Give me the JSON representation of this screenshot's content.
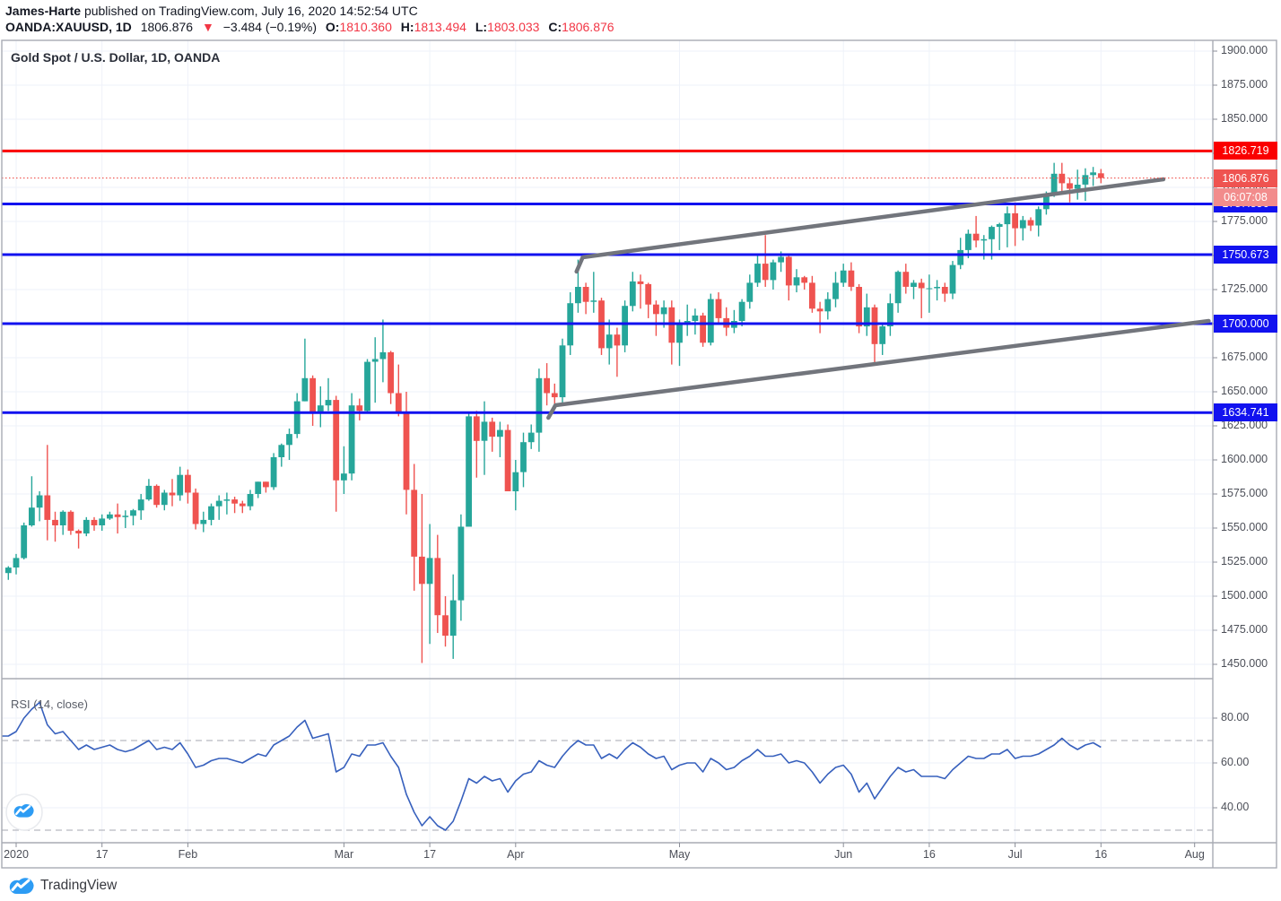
{
  "header": {
    "author": "James-Harte",
    "publish_text": " published on TradingView.com, July 16, 2020 14:52:54 UTC",
    "symbol_interval": "OANDA:XAUUSD, 1D",
    "last_price": "1806.876",
    "down_arrow": "▼",
    "change": "−3.484 (−0.19%)",
    "open_label": "O:",
    "open_value": "1810.360",
    "high_label": "H:",
    "high_value": "1813.494",
    "low_label": "L:",
    "low_value": "1803.033",
    "close_label": "C:",
    "close_value": "1806.876"
  },
  "chart": {
    "title": "Gold Spot / U.S. Dollar, 1D, OANDA",
    "rsi_label": "RSI (14, close)"
  },
  "price_axis": {
    "ticks": [
      1900,
      1875,
      1850,
      1825,
      1800,
      1775,
      1750,
      1725,
      1700,
      1675,
      1650,
      1625,
      1600,
      1575,
      1550,
      1525,
      1500,
      1475,
      1450
    ],
    "decimals": 3
  },
  "rsi_axis": {
    "ticks": [
      80,
      60,
      40
    ],
    "decimals": 2
  },
  "time_axis": {
    "ticks": [
      {
        "label": "2020",
        "i": 1
      },
      {
        "label": "17",
        "i": 12
      },
      {
        "label": "Feb",
        "i": 23
      },
      {
        "label": "Mar",
        "i": 43
      },
      {
        "label": "17",
        "i": 54
      },
      {
        "label": "Apr",
        "i": 65
      },
      {
        "label": "May",
        "i": 86
      },
      {
        "label": "Jun",
        "i": 107
      },
      {
        "label": "16",
        "i": 118
      },
      {
        "label": "Jul",
        "i": 129
      },
      {
        "label": "16",
        "i": 140
      },
      {
        "label": "Aug",
        "i": 152
      }
    ]
  },
  "footer": {
    "brand": "TradingView"
  },
  "colors": {
    "up": "#26a69a",
    "down": "#ef5350",
    "level_red": "#fa0000",
    "level_blue": "#1212ef",
    "last_badge": "#ef5350",
    "countdown_badge": "#f28c8c",
    "channel": "#72757c",
    "rsi_line": "#3760bd",
    "grid": "#eef2f9",
    "dashed_band": "#b7b9c1",
    "border": "#a8abb3",
    "tick": "#8b8e98",
    "logo_blue": "#2d9cf4",
    "last_line": "#f0524d"
  },
  "chart_data": {
    "type": "candlestick+rsi",
    "title": "Gold Spot / U.S. Dollar, 1D, OANDA",
    "symbol": "XAUUSD",
    "timeframe": "1D",
    "price_range": [
      1439,
      1908
    ],
    "rsi_range": [
      22,
      98
    ],
    "rsi_bands": [
      70,
      30
    ],
    "last": {
      "price": 1806.876,
      "countdown": "06:07:08",
      "direction": "down"
    },
    "levels": [
      {
        "price": 1826.719,
        "color": "red"
      },
      {
        "price": 1787.856,
        "color": "blue"
      },
      {
        "price": 1750.673,
        "color": "blue"
      },
      {
        "price": 1700.0,
        "color": "blue"
      },
      {
        "price": 1634.741,
        "color": "blue"
      }
    ],
    "channel": {
      "upper": [
        {
          "i": 72.8,
          "p": 1738.2
        },
        {
          "i": 73.6,
          "p": 1748.7
        },
        {
          "i": 148.0,
          "p": 1805.9
        }
      ],
      "lower": [
        {
          "i": 69.2,
          "p": 1630.9
        },
        {
          "i": 70.1,
          "p": 1640.1
        },
        {
          "i": 153.8,
          "p": 1702.0
        }
      ]
    },
    "candles": [
      [
        1517,
        1522,
        1512,
        1521
      ],
      [
        1521,
        1531,
        1516,
        1528
      ],
      [
        1528,
        1554,
        1527,
        1552
      ],
      [
        1552,
        1588,
        1551,
        1565
      ],
      [
        1565,
        1577,
        1555,
        1574
      ],
      [
        1574,
        1611,
        1541,
        1556
      ],
      [
        1556,
        1562,
        1540,
        1552
      ],
      [
        1552,
        1563,
        1545,
        1562
      ],
      [
        1562,
        1563,
        1545,
        1548
      ],
      [
        1548,
        1549,
        1535,
        1546
      ],
      [
        1546,
        1558,
        1544,
        1556
      ],
      [
        1556,
        1558,
        1548,
        1552
      ],
      [
        1552,
        1560,
        1548,
        1557
      ],
      [
        1557,
        1562,
        1556,
        1560
      ],
      [
        1560,
        1568,
        1546,
        1558
      ],
      [
        1558,
        1563,
        1550,
        1559
      ],
      [
        1559,
        1564,
        1552,
        1563
      ],
      [
        1563,
        1575,
        1556,
        1571
      ],
      [
        1571,
        1586,
        1570,
        1581
      ],
      [
        1581,
        1582,
        1565,
        1567
      ],
      [
        1567,
        1578,
        1563,
        1576
      ],
      [
        1576,
        1586,
        1566,
        1574
      ],
      [
        1574,
        1595,
        1570,
        1589
      ],
      [
        1589,
        1593,
        1568,
        1576
      ],
      [
        1576,
        1579,
        1549,
        1553
      ],
      [
        1553,
        1562,
        1547,
        1556
      ],
      [
        1556,
        1568,
        1552,
        1566
      ],
      [
        1566,
        1574,
        1556,
        1570
      ],
      [
        1570,
        1576,
        1560,
        1571
      ],
      [
        1571,
        1573,
        1561,
        1568
      ],
      [
        1568,
        1570,
        1561,
        1566
      ],
      [
        1566,
        1578,
        1563,
        1575
      ],
      [
        1575,
        1584,
        1572,
        1584
      ],
      [
        1584,
        1584,
        1576,
        1580
      ],
      [
        1580,
        1605,
        1578,
        1602
      ],
      [
        1602,
        1612,
        1595,
        1611
      ],
      [
        1611,
        1623,
        1600,
        1619
      ],
      [
        1619,
        1649,
        1616,
        1643
      ],
      [
        1643,
        1689,
        1643,
        1660
      ],
      [
        1660,
        1662,
        1625,
        1635
      ],
      [
        1635,
        1654,
        1624,
        1640
      ],
      [
        1640,
        1660,
        1636,
        1644
      ],
      [
        1644,
        1647,
        1562,
        1585
      ],
      [
        1585,
        1610,
        1575,
        1590
      ],
      [
        1590,
        1649,
        1585,
        1640
      ],
      [
        1640,
        1645,
        1629,
        1636
      ],
      [
        1636,
        1674,
        1635,
        1672
      ],
      [
        1672,
        1690,
        1642,
        1674
      ],
      [
        1674,
        1703,
        1657,
        1679
      ],
      [
        1679,
        1680,
        1641,
        1649
      ],
      [
        1649,
        1670,
        1632,
        1634
      ],
      [
        1634,
        1650,
        1560,
        1578
      ],
      [
        1578,
        1597,
        1504,
        1529
      ],
      [
        1529,
        1575,
        1451,
        1509
      ],
      [
        1509,
        1553,
        1465,
        1528
      ],
      [
        1528,
        1545,
        1473,
        1486
      ],
      [
        1486,
        1500,
        1463,
        1471
      ],
      [
        1471,
        1516,
        1454,
        1497
      ],
      [
        1497,
        1560,
        1482,
        1551
      ],
      [
        1551,
        1634,
        1551,
        1632
      ],
      [
        1632,
        1636,
        1587,
        1614
      ],
      [
        1614,
        1643,
        1589,
        1628
      ],
      [
        1628,
        1631,
        1606,
        1617
      ],
      [
        1617,
        1628,
        1602,
        1622
      ],
      [
        1622,
        1626,
        1577,
        1577
      ],
      [
        1577,
        1600,
        1563,
        1591
      ],
      [
        1591,
        1620,
        1580,
        1613
      ],
      [
        1613,
        1626,
        1608,
        1620
      ],
      [
        1620,
        1667,
        1606,
        1660
      ],
      [
        1660,
        1671,
        1640,
        1649
      ],
      [
        1649,
        1656,
        1640,
        1646
      ],
      [
        1646,
        1689,
        1642,
        1684
      ],
      [
        1684,
        1723,
        1677,
        1715
      ],
      [
        1715,
        1747,
        1708,
        1727
      ],
      [
        1727,
        1730,
        1707,
        1716
      ],
      [
        1716,
        1738,
        1708,
        1717
      ],
      [
        1717,
        1719,
        1677,
        1682
      ],
      [
        1682,
        1703,
        1670,
        1692
      ],
      [
        1692,
        1697,
        1661,
        1684
      ],
      [
        1684,
        1717,
        1679,
        1713
      ],
      [
        1713,
        1738,
        1709,
        1731
      ],
      [
        1731,
        1736,
        1711,
        1729
      ],
      [
        1729,
        1730,
        1704,
        1714
      ],
      [
        1714,
        1717,
        1691,
        1707
      ],
      [
        1707,
        1717,
        1697,
        1712
      ],
      [
        1712,
        1717,
        1670,
        1686
      ],
      [
        1686,
        1703,
        1669,
        1700
      ],
      [
        1700,
        1714,
        1691,
        1702
      ],
      [
        1702,
        1711,
        1692,
        1706
      ],
      [
        1706,
        1708,
        1683,
        1686
      ],
      [
        1686,
        1722,
        1684,
        1718
      ],
      [
        1718,
        1723,
        1700,
        1704
      ],
      [
        1704,
        1712,
        1691,
        1697
      ],
      [
        1697,
        1710,
        1693,
        1702
      ],
      [
        1702,
        1718,
        1698,
        1716
      ],
      [
        1716,
        1736,
        1711,
        1730
      ],
      [
        1730,
        1751,
        1727,
        1744
      ],
      [
        1744,
        1765,
        1727,
        1732
      ],
      [
        1732,
        1747,
        1725,
        1745
      ],
      [
        1745,
        1753,
        1738,
        1749
      ],
      [
        1749,
        1750,
        1717,
        1728
      ],
      [
        1728,
        1740,
        1723,
        1734
      ],
      [
        1734,
        1735,
        1725,
        1730
      ],
      [
        1730,
        1735,
        1708,
        1711
      ],
      [
        1711,
        1716,
        1693,
        1709
      ],
      [
        1709,
        1723,
        1703,
        1718
      ],
      [
        1718,
        1738,
        1712,
        1730
      ],
      [
        1730,
        1744,
        1727,
        1739
      ],
      [
        1739,
        1745,
        1724,
        1727
      ],
      [
        1727,
        1729,
        1693,
        1698
      ],
      [
        1698,
        1722,
        1691,
        1712
      ],
      [
        1712,
        1714,
        1670,
        1685
      ],
      [
        1685,
        1701,
        1677,
        1698
      ],
      [
        1698,
        1722,
        1691,
        1715
      ],
      [
        1715,
        1739,
        1708,
        1738
      ],
      [
        1738,
        1744,
        1722,
        1727
      ],
      [
        1727,
        1732,
        1718,
        1730
      ],
      [
        1730,
        1733,
        1704,
        1726
      ],
      [
        1726,
        1736,
        1708,
        1726
      ],
      [
        1726,
        1732,
        1717,
        1727
      ],
      [
        1727,
        1730,
        1716,
        1722
      ],
      [
        1722,
        1746,
        1718,
        1743
      ],
      [
        1743,
        1763,
        1740,
        1754
      ],
      [
        1754,
        1769,
        1748,
        1766
      ],
      [
        1766,
        1779,
        1756,
        1761
      ],
      [
        1761,
        1765,
        1747,
        1762
      ],
      [
        1762,
        1772,
        1747,
        1771
      ],
      [
        1771,
        1774,
        1754,
        1773
      ],
      [
        1773,
        1786,
        1756,
        1781
      ],
      [
        1781,
        1789,
        1757,
        1770
      ],
      [
        1770,
        1779,
        1761,
        1776
      ],
      [
        1776,
        1778,
        1768,
        1772
      ],
      [
        1772,
        1786,
        1764,
        1784
      ],
      [
        1784,
        1797,
        1780,
        1795
      ],
      [
        1795,
        1818,
        1793,
        1810
      ],
      [
        1810,
        1818,
        1796,
        1803
      ],
      [
        1803,
        1807,
        1789,
        1799
      ],
      [
        1799,
        1813,
        1791,
        1802
      ],
      [
        1802,
        1814,
        1790,
        1809
      ],
      [
        1809,
        1815,
        1801,
        1811
      ],
      [
        1810.36,
        1813.494,
        1803.033,
        1806.876
      ]
    ],
    "rsi": [
      72,
      74,
      80,
      84,
      87,
      77,
      73,
      74,
      70,
      66,
      68,
      66,
      67,
      68,
      66,
      65,
      66,
      68,
      70,
      66,
      67,
      66,
      69,
      64,
      58,
      59,
      61,
      62,
      62,
      61,
      60,
      62,
      64,
      63,
      68,
      70,
      72,
      76,
      79,
      71,
      72,
      73,
      56,
      58,
      64,
      63,
      68,
      68,
      69,
      63,
      58,
      46,
      38,
      32,
      36,
      32,
      30,
      34,
      43,
      53,
      51,
      54,
      52,
      53,
      47,
      52,
      55,
      56,
      61,
      59,
      58,
      63,
      67,
      70,
      68,
      68,
      62,
      64,
      62,
      66,
      69,
      67,
      64,
      62,
      63,
      57,
      59,
      60,
      60,
      56,
      62,
      60,
      57,
      58,
      61,
      63,
      66,
      63,
      63,
      64,
      60,
      61,
      60,
      56,
      51,
      55,
      58,
      59,
      55,
      47,
      51,
      44,
      49,
      54,
      58,
      56,
      57,
      54,
      54,
      54,
      53,
      57,
      60,
      63,
      62,
      62,
      64,
      64,
      66,
      62,
      63,
      63,
      64,
      66,
      68,
      71,
      68,
      66,
      68,
      69,
      67
    ]
  }
}
